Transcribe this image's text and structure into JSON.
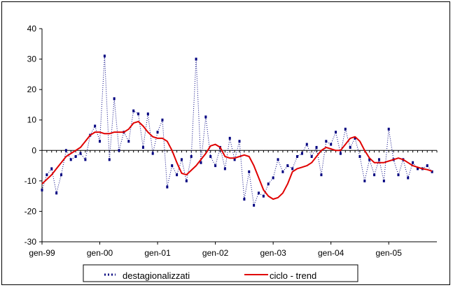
{
  "chart_data": {
    "type": "line",
    "title": "",
    "xlabel": "",
    "ylabel": "",
    "ylim": [
      -30,
      40
    ],
    "yticks": [
      -30,
      -20,
      -10,
      0,
      10,
      20,
      30,
      40
    ],
    "ytick_labels": [
      "-30",
      "-20",
      "-10",
      "0",
      "10",
      "20",
      "30",
      "40"
    ],
    "xticks": [
      {
        "label": "gen-99",
        "t": 0
      },
      {
        "label": "gen-00",
        "t": 12
      },
      {
        "label": "gen-01",
        "t": 24
      },
      {
        "label": "gen-02",
        "t": 36
      },
      {
        "label": "gen-03",
        "t": 48
      },
      {
        "label": "gen-04",
        "t": 60
      },
      {
        "label": "gen-05",
        "t": 72
      }
    ],
    "grid": false,
    "legend_position": "bottom",
    "series": [
      {
        "name": "destagionalizzati",
        "style": "dotted",
        "color": "#000080",
        "x": [
          0,
          1,
          2,
          3,
          4,
          5,
          6,
          7,
          8,
          9,
          10,
          11,
          12,
          13,
          14,
          15,
          16,
          17,
          18,
          19,
          20,
          21,
          22,
          23,
          24,
          25,
          26,
          27,
          28,
          29,
          30,
          31,
          32,
          33,
          34,
          35,
          36,
          37,
          38,
          39,
          40,
          41,
          42,
          43,
          44,
          45,
          46,
          47,
          48,
          49,
          50,
          51,
          52,
          53,
          54,
          55,
          56,
          57,
          58,
          59,
          60,
          61,
          62,
          63,
          64,
          65,
          66,
          67,
          68,
          69,
          70,
          71,
          72,
          73,
          74,
          75,
          76,
          77,
          78,
          79,
          80,
          81
        ],
        "values": [
          -13,
          -8,
          -6,
          -14,
          -8,
          0,
          -3,
          -2,
          -1,
          -3,
          5,
          8,
          3,
          31,
          -3,
          17,
          0,
          6,
          3,
          13,
          12,
          1,
          12,
          -1,
          6,
          10,
          -12,
          -5,
          -8,
          -3,
          -10,
          -2,
          30,
          -4,
          11,
          -2,
          -5,
          1,
          -6,
          4,
          -3,
          3,
          -16,
          -7,
          -18,
          -14,
          -15,
          -11,
          -9,
          -3,
          -7,
          -5,
          -6,
          -2,
          -1,
          2,
          -2,
          1,
          -8,
          3,
          2,
          6,
          -1,
          7,
          1,
          4,
          -2,
          -10,
          -3,
          -8,
          -3,
          -10,
          7,
          -3,
          -8,
          -3,
          -9,
          -4,
          -6,
          -6,
          -5,
          -7
        ]
      },
      {
        "name": "ciclo - trend",
        "style": "solid",
        "color": "#e00000",
        "x": [
          0,
          1,
          2,
          3,
          4,
          5,
          6,
          7,
          8,
          9,
          10,
          11,
          12,
          13,
          14,
          15,
          16,
          17,
          18,
          19,
          20,
          21,
          22,
          23,
          24,
          25,
          26,
          27,
          28,
          29,
          30,
          31,
          32,
          33,
          34,
          35,
          36,
          37,
          38,
          39,
          40,
          41,
          42,
          43,
          44,
          45,
          46,
          47,
          48,
          49,
          50,
          51,
          52,
          53,
          54,
          55,
          56,
          57,
          58,
          59,
          60,
          61,
          62,
          63,
          64,
          65,
          66,
          67,
          68,
          69,
          70,
          71,
          72,
          73,
          74,
          75,
          76,
          77,
          78,
          79,
          80,
          81
        ],
        "values": [
          -11,
          -9.5,
          -8,
          -6,
          -4,
          -2,
          -1,
          0,
          1,
          3,
          5,
          6,
          6,
          5.5,
          5.5,
          6,
          6,
          6,
          7,
          9,
          9.5,
          8,
          6,
          4.5,
          4,
          4,
          3,
          0,
          -4,
          -7.5,
          -8,
          -6.5,
          -5,
          -3,
          -1,
          1.5,
          2,
          1,
          -2,
          -2.5,
          -2.5,
          -2,
          -1.5,
          -2,
          -5,
          -9,
          -13,
          -15,
          -16,
          -15.5,
          -14,
          -11,
          -7,
          -6,
          -5.5,
          -5,
          -4,
          -2,
          0,
          1,
          0.5,
          0,
          0,
          2,
          4,
          4.5,
          3,
          0,
          -2.5,
          -4,
          -4,
          -4,
          -3.5,
          -3,
          -2.5,
          -3,
          -4,
          -5,
          -5.5,
          -6,
          -6.3,
          -6.8
        ]
      }
    ]
  }
}
